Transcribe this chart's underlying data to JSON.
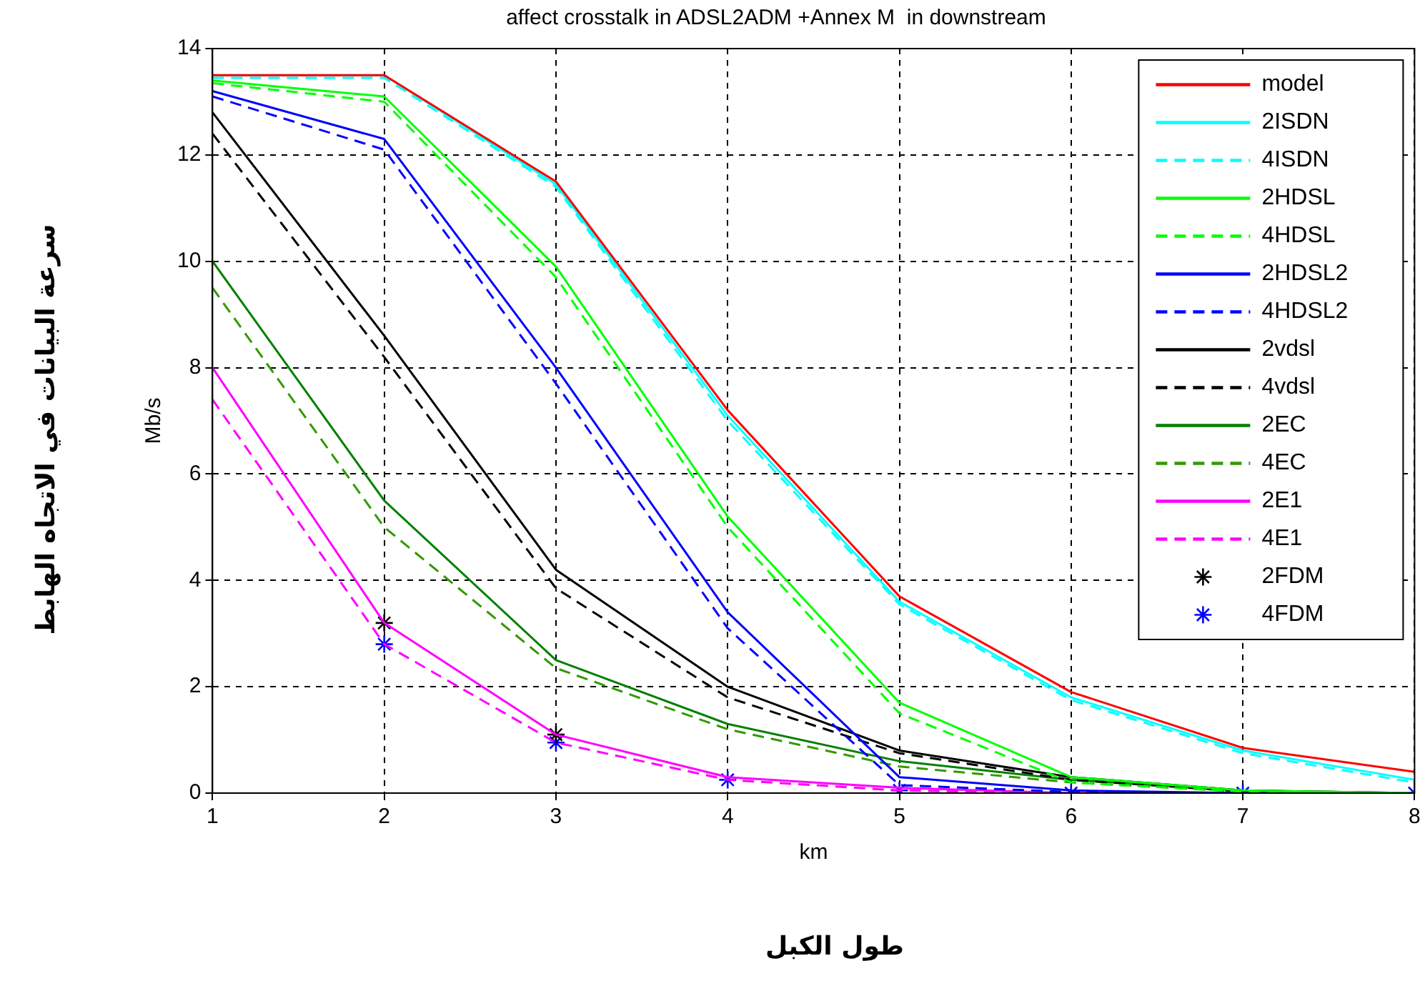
{
  "chart_data": {
    "type": "line",
    "title": "affect crosstalk in ADSL2ADM +Annex M  in downstream",
    "xlabel": "km",
    "ylabel": "Mb/s",
    "annotations": [
      "طول الكبل",
      "سرعة البيانات في الاتجاه الهابط"
    ],
    "x": [
      1,
      2,
      3,
      4,
      5,
      6,
      7,
      8
    ],
    "xlim": [
      1,
      8
    ],
    "xticks": [
      1,
      2,
      3,
      4,
      5,
      6,
      7,
      8
    ],
    "ylim": [
      0,
      14
    ],
    "yticks": [
      0,
      2,
      4,
      6,
      8,
      10,
      12,
      14
    ],
    "grid": true,
    "legend": "top right",
    "series": [
      {
        "name": "model",
        "color": "#ff0000",
        "line_style": "solid",
        "values": [
          13.5,
          13.5,
          11.5,
          7.2,
          3.7,
          1.9,
          0.85,
          0.4
        ]
      },
      {
        "name": "2ISDN",
        "color": "#00ffff",
        "line_style": "solid",
        "values": [
          13.5,
          13.5,
          11.45,
          7.1,
          3.6,
          1.8,
          0.8,
          0.25
        ]
      },
      {
        "name": "4ISDN",
        "color": "#00ffff",
        "line_style": "dashed",
        "values": [
          13.45,
          13.45,
          11.4,
          7.0,
          3.55,
          1.75,
          0.75,
          0.2
        ]
      },
      {
        "name": "2HDSL",
        "color": "#00ff00",
        "line_style": "solid",
        "values": [
          13.4,
          13.1,
          9.9,
          5.2,
          1.7,
          0.3,
          0.05,
          0
        ]
      },
      {
        "name": "4HDSL",
        "color": "#00ff00",
        "line_style": "dashed",
        "values": [
          13.35,
          13.0,
          9.7,
          5.0,
          1.5,
          0.2,
          0.03,
          0
        ]
      },
      {
        "name": "2HDSL2",
        "color": "#0000ff",
        "line_style": "solid",
        "values": [
          13.2,
          12.3,
          8.0,
          3.4,
          0.3,
          0.05,
          0,
          0
        ]
      },
      {
        "name": "4HDSL2",
        "color": "#0000ff",
        "line_style": "dashed",
        "values": [
          13.1,
          12.1,
          7.7,
          3.1,
          0.15,
          0.02,
          0,
          0
        ]
      },
      {
        "name": "2vdsl",
        "color": "#000000",
        "line_style": "solid",
        "values": [
          12.8,
          8.6,
          4.2,
          2.0,
          0.8,
          0.3,
          0.05,
          0
        ]
      },
      {
        "name": "4vdsl",
        "color": "#000000",
        "line_style": "dashed",
        "values": [
          12.4,
          8.2,
          3.85,
          1.8,
          0.75,
          0.25,
          0.03,
          0
        ]
      },
      {
        "name": "2EC",
        "color": "#008000",
        "line_style": "solid",
        "values": [
          10,
          5.5,
          2.5,
          1.3,
          0.6,
          0.25,
          0.05,
          0
        ]
      },
      {
        "name": "4EC",
        "color": "#339900",
        "line_style": "dashed",
        "values": [
          9.5,
          5.0,
          2.35,
          1.2,
          0.5,
          0.2,
          0.03,
          0
        ]
      },
      {
        "name": "2E1",
        "color": "#ff00ff",
        "line_style": "solid",
        "values": [
          8,
          3.2,
          1.1,
          0.3,
          0.1,
          0,
          0,
          0
        ]
      },
      {
        "name": "4E1",
        "color": "#ff00ff",
        "line_style": "dashed",
        "values": [
          7.4,
          2.8,
          0.95,
          0.25,
          0.05,
          0,
          0,
          0
        ]
      },
      {
        "name": "2FDM",
        "type": "scatter",
        "marker": "cross",
        "color": "#000000",
        "x": [
          2,
          3
        ],
        "values": [
          3.2,
          1.1
        ]
      },
      {
        "name": "4FDM",
        "type": "scatter",
        "marker": "cross",
        "color": "#0000ff",
        "x": [
          2,
          3,
          4,
          5,
          6,
          7,
          8
        ],
        "values": [
          2.8,
          0.95,
          0.25,
          0.05,
          0,
          0,
          0
        ]
      }
    ]
  }
}
